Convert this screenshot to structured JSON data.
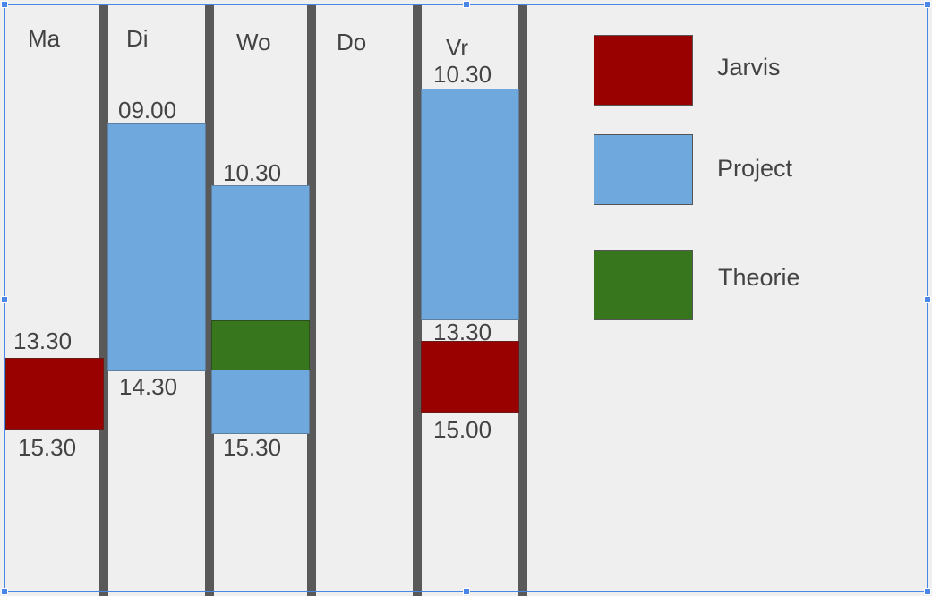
{
  "colors": {
    "jarvis": "#990000",
    "project": "#6fa8dc",
    "theorie": "#38761d",
    "divider": "#595959",
    "background": "#efefef",
    "selection": "#4a86e8"
  },
  "days": {
    "ma": "Ma",
    "di": "Di",
    "wo": "Wo",
    "do": "Do",
    "vr": "Vr"
  },
  "times": {
    "ma_start": "13.30",
    "ma_end": "15.30",
    "di_start": "09.00",
    "di_end": "14.30",
    "wo_start": "10.30",
    "wo_end": "15.30",
    "vr_start": "10.30",
    "vr_mid": "13.30",
    "vr_end": "15.00"
  },
  "legend": {
    "jarvis": "Jarvis",
    "project": "Project",
    "theorie": "Theorie"
  }
}
